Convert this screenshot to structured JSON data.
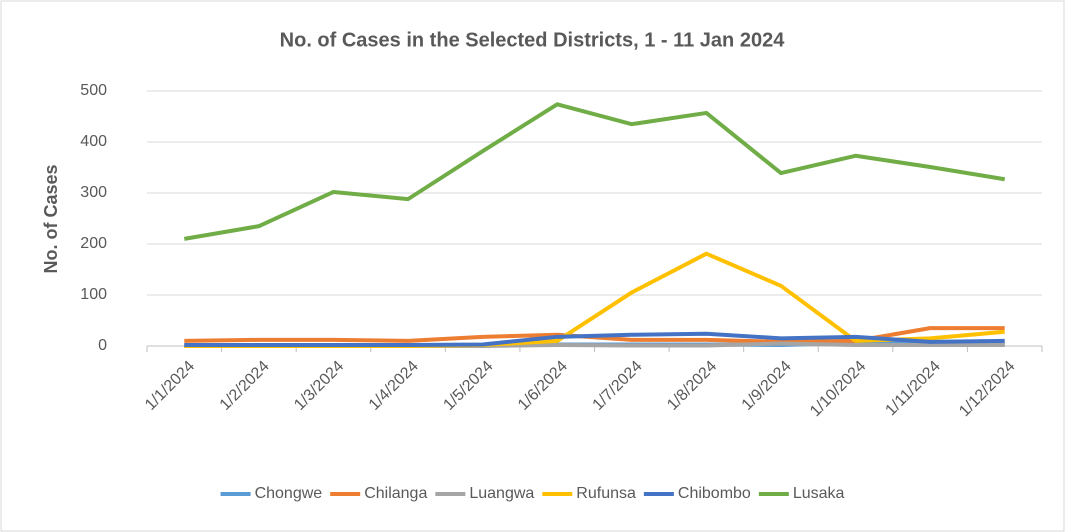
{
  "chart_data": {
    "type": "line",
    "title": "No. of Cases in the Selected Districts, 1 - 11 Jan 2024",
    "y_label": "No. of Cases",
    "categories": [
      "1/1/2024",
      "1/2/2024",
      "1/3/2024",
      "1/4/2024",
      "1/5/2024",
      "1/6/2024",
      "1/7/2024",
      "1/8/2024",
      "1/9/2024",
      "1/10/2024",
      "1/11/2024",
      "1/12/2024"
    ],
    "series": [
      {
        "name": "Chongwe",
        "color": "#5b9bd5",
        "values": [
          1,
          1,
          1,
          1,
          1,
          3,
          3,
          3,
          2,
          6,
          4,
          4
        ]
      },
      {
        "name": "Chilanga",
        "color": "#ed7d31",
        "values": [
          10,
          12,
          12,
          10,
          18,
          22,
          12,
          12,
          8,
          10,
          35,
          35
        ]
      },
      {
        "name": "Luangwa",
        "color": "#a5a5a5",
        "values": [
          0,
          0,
          0,
          0,
          0,
          2,
          1,
          1,
          5,
          2,
          2,
          2
        ]
      },
      {
        "name": "Rufunsa",
        "color": "#ffc000",
        "values": [
          0,
          0,
          0,
          0,
          2,
          10,
          105,
          181,
          118,
          10,
          15,
          28
        ]
      },
      {
        "name": "Chibombo",
        "color": "#4472c4",
        "values": [
          2,
          2,
          2,
          2,
          3,
          18,
          22,
          24,
          15,
          18,
          8,
          10
        ]
      },
      {
        "name": "Lusaka",
        "color": "#70ad47",
        "values": [
          210,
          235,
          302,
          288,
          382,
          474,
          435,
          457,
          339,
          373,
          351,
          327
        ]
      }
    ],
    "ylim": [
      0,
      500
    ],
    "yticks": [
      0,
      100,
      200,
      300,
      400,
      500
    ],
    "grid": true,
    "legend": "bottom"
  }
}
